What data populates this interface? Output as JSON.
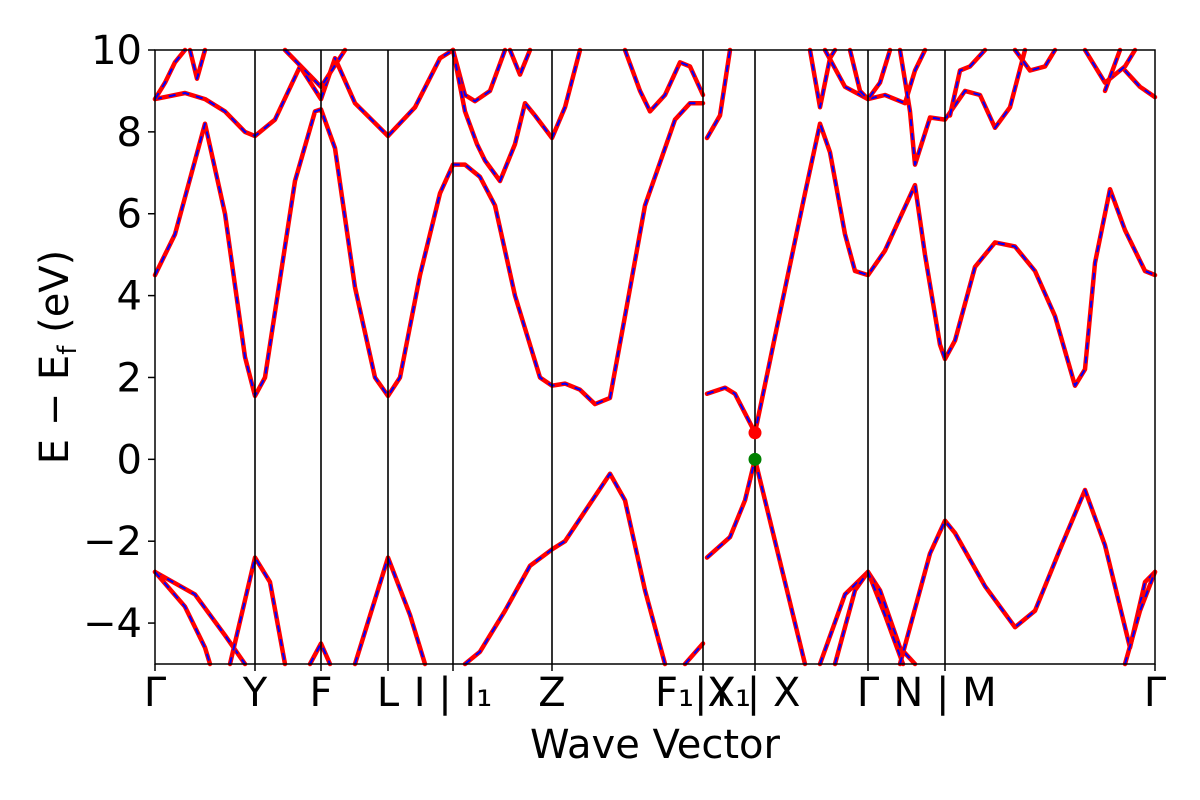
{
  "chart_data": {
    "type": "line",
    "xlabel": "Wave Vector",
    "ylabel_parts": {
      "main": "E − E",
      "sub": "f",
      "unit": " (eV)"
    },
    "ylim": [
      -5,
      10
    ],
    "yticks": [
      -4,
      -2,
      0,
      2,
      4,
      6,
      8,
      10
    ],
    "ytick_labels": [
      "−4",
      "−2",
      "0",
      "2",
      "4",
      "6",
      "8",
      "10"
    ],
    "xlim": [
      0,
      1
    ],
    "kpoints": [
      {
        "label": "Γ",
        "x": 0.0
      },
      {
        "label": "Y",
        "x": 0.1
      },
      {
        "label": "F",
        "x": 0.166
      },
      {
        "label": "L",
        "x": 0.233
      },
      {
        "label": "I | I₁",
        "x": 0.298
      },
      {
        "label": "Z",
        "x": 0.397
      },
      {
        "label": "F₁|X₁",
        "x": 0.548
      },
      {
        "label": "Y | X",
        "x": 0.6
      },
      {
        "label": "Γ",
        "x": 0.713
      },
      {
        "label": "N | M",
        "x": 0.79
      },
      {
        "label": "Γ",
        "x": 1.0
      }
    ],
    "series_colors": {
      "solid": "#ff0000",
      "dashed": "#0000ff"
    },
    "markers": [
      {
        "name": "cbm",
        "x": 0.6,
        "y": 0.65,
        "color": "#ff0000"
      },
      {
        "name": "vbm",
        "x": 0.6,
        "y": 0.0,
        "color": "#008000"
      }
    ],
    "bands": [
      {
        "name": "v1",
        "points": [
          [
            0,
            -2.75
          ],
          [
            0.04,
            -3.3
          ],
          [
            0.07,
            -4.3
          ],
          [
            0.09,
            -5.0
          ]
        ]
      },
      {
        "name": "v2",
        "points": [
          [
            0,
            -2.75
          ],
          [
            0.03,
            -3.6
          ],
          [
            0.05,
            -4.6
          ],
          [
            0.055,
            -5.0
          ]
        ]
      },
      {
        "name": "v3",
        "points": [
          [
            0.075,
            -5.0
          ],
          [
            0.1,
            -2.4
          ],
          [
            0.115,
            -3.0
          ],
          [
            0.13,
            -5.0
          ]
        ]
      },
      {
        "name": "v4",
        "points": [
          [
            0.155,
            -5.0
          ],
          [
            0.166,
            -4.5
          ],
          [
            0.175,
            -5.0
          ]
        ]
      },
      {
        "name": "v5",
        "points": [
          [
            0.2,
            -5.0
          ],
          [
            0.233,
            -2.4
          ],
          [
            0.255,
            -3.8
          ],
          [
            0.27,
            -5.0
          ]
        ]
      },
      {
        "name": "v6",
        "points": [
          [
            0.31,
            -5.0
          ],
          [
            0.325,
            -4.7
          ],
          [
            0.35,
            -3.7
          ],
          [
            0.375,
            -2.6
          ],
          [
            0.397,
            -2.2
          ],
          [
            0.41,
            -2.0
          ],
          [
            0.44,
            -0.9
          ],
          [
            0.455,
            -0.35
          ],
          [
            0.47,
            -1.0
          ],
          [
            0.49,
            -3.2
          ],
          [
            0.51,
            -5.0
          ]
        ]
      },
      {
        "name": "v7",
        "points": [
          [
            0.53,
            -5.0
          ],
          [
            0.548,
            -4.5
          ]
        ]
      },
      {
        "name": "v8",
        "points": [
          [
            0.552,
            -2.4
          ],
          [
            0.575,
            -1.9
          ],
          [
            0.59,
            -1.0
          ],
          [
            0.6,
            0.0
          ],
          [
            0.62,
            -2.0
          ],
          [
            0.65,
            -5.0
          ]
        ]
      },
      {
        "name": "v9",
        "points": [
          [
            0.665,
            -5.0
          ],
          [
            0.69,
            -3.3
          ],
          [
            0.713,
            -2.75
          ],
          [
            0.725,
            -3.2
          ],
          [
            0.745,
            -4.6
          ],
          [
            0.76,
            -5.0
          ]
        ]
      },
      {
        "name": "v10",
        "points": [
          [
            0.68,
            -5.0
          ],
          [
            0.7,
            -3.2
          ],
          [
            0.713,
            -2.75
          ],
          [
            0.73,
            -3.8
          ],
          [
            0.748,
            -5.0
          ]
        ]
      },
      {
        "name": "v11",
        "points": [
          [
            0.745,
            -5.0
          ],
          [
            0.775,
            -2.3
          ],
          [
            0.79,
            -1.5
          ],
          [
            0.8,
            -1.8
          ],
          [
            0.83,
            -3.1
          ],
          [
            0.86,
            -4.1
          ],
          [
            0.88,
            -3.7
          ],
          [
            0.905,
            -2.2
          ],
          [
            0.93,
            -0.75
          ],
          [
            0.95,
            -2.1
          ],
          [
            0.975,
            -4.6
          ],
          [
            0.99,
            -3.0
          ],
          [
            1.0,
            -2.75
          ]
        ]
      },
      {
        "name": "v12",
        "points": [
          [
            0.97,
            -5.0
          ],
          [
            0.985,
            -3.7
          ],
          [
            1.0,
            -2.75
          ]
        ]
      },
      {
        "name": "c1",
        "points": [
          [
            0,
            4.5
          ],
          [
            0.02,
            5.5
          ],
          [
            0.05,
            8.2
          ],
          [
            0.07,
            6.0
          ],
          [
            0.09,
            2.5
          ],
          [
            0.1,
            1.55
          ],
          [
            0.11,
            2.0
          ],
          [
            0.14,
            6.8
          ],
          [
            0.16,
            8.5
          ],
          [
            0.166,
            8.55
          ],
          [
            0.18,
            7.6
          ],
          [
            0.2,
            4.2
          ],
          [
            0.22,
            2.0
          ],
          [
            0.233,
            1.55
          ],
          [
            0.245,
            2.0
          ],
          [
            0.265,
            4.5
          ],
          [
            0.285,
            6.5
          ],
          [
            0.298,
            7.2
          ],
          [
            0.31,
            7.2
          ],
          [
            0.325,
            6.9
          ],
          [
            0.34,
            6.2
          ],
          [
            0.36,
            4.0
          ],
          [
            0.385,
            2.0
          ],
          [
            0.397,
            1.8
          ],
          [
            0.41,
            1.85
          ],
          [
            0.425,
            1.7
          ],
          [
            0.44,
            1.35
          ],
          [
            0.455,
            1.5
          ],
          [
            0.47,
            3.5
          ],
          [
            0.49,
            6.2
          ],
          [
            0.52,
            8.3
          ],
          [
            0.535,
            8.7
          ],
          [
            0.548,
            8.7
          ]
        ]
      },
      {
        "name": "c2",
        "points": [
          [
            0.552,
            1.6
          ],
          [
            0.57,
            1.75
          ],
          [
            0.58,
            1.6
          ],
          [
            0.6,
            0.65
          ],
          [
            0.62,
            3.0
          ],
          [
            0.65,
            6.5
          ],
          [
            0.665,
            8.2
          ],
          [
            0.675,
            7.5
          ],
          [
            0.69,
            5.5
          ],
          [
            0.7,
            4.6
          ],
          [
            0.713,
            4.5
          ],
          [
            0.73,
            5.1
          ],
          [
            0.76,
            6.7
          ],
          [
            0.77,
            5.0
          ],
          [
            0.785,
            2.8
          ],
          [
            0.79,
            2.45
          ],
          [
            0.8,
            2.9
          ],
          [
            0.82,
            4.7
          ],
          [
            0.84,
            5.3
          ],
          [
            0.86,
            5.2
          ],
          [
            0.88,
            4.6
          ],
          [
            0.9,
            3.5
          ],
          [
            0.92,
            1.8
          ],
          [
            0.93,
            2.2
          ],
          [
            0.94,
            4.8
          ],
          [
            0.955,
            6.6
          ],
          [
            0.97,
            5.6
          ],
          [
            0.99,
            4.6
          ],
          [
            1.0,
            4.5
          ]
        ]
      },
      {
        "name": "c3",
        "points": [
          [
            0,
            8.8
          ],
          [
            0.03,
            8.95
          ],
          [
            0.05,
            8.8
          ],
          [
            0.07,
            8.5
          ],
          [
            0.09,
            8.0
          ],
          [
            0.1,
            7.9
          ],
          [
            0.12,
            8.3
          ],
          [
            0.145,
            9.6
          ],
          [
            0.166,
            8.8
          ],
          [
            0.18,
            9.8
          ],
          [
            0.2,
            8.7
          ],
          [
            0.233,
            7.9
          ],
          [
            0.26,
            8.6
          ],
          [
            0.285,
            9.8
          ],
          [
            0.298,
            10.0
          ]
        ]
      },
      {
        "name": "c4",
        "points": [
          [
            0,
            8.8
          ],
          [
            0.01,
            9.2
          ],
          [
            0.02,
            9.7
          ],
          [
            0.03,
            10.0
          ]
        ]
      },
      {
        "name": "c5",
        "points": [
          [
            0.035,
            10.0
          ],
          [
            0.042,
            9.3
          ],
          [
            0.05,
            10.0
          ]
        ]
      },
      {
        "name": "c6",
        "points": [
          [
            0.13,
            10.0
          ],
          [
            0.166,
            9.1
          ],
          [
            0.19,
            10.0
          ]
        ]
      },
      {
        "name": "c7",
        "points": [
          [
            0.298,
            10.0
          ],
          [
            0.31,
            8.9
          ],
          [
            0.32,
            8.75
          ],
          [
            0.335,
            9.0
          ],
          [
            0.35,
            10.0
          ]
        ]
      },
      {
        "name": "c8",
        "points": [
          [
            0.298,
            10.0
          ],
          [
            0.31,
            8.5
          ],
          [
            0.322,
            7.7
          ],
          [
            0.33,
            7.3
          ],
          [
            0.345,
            6.8
          ],
          [
            0.36,
            7.7
          ],
          [
            0.37,
            8.7
          ],
          [
            0.38,
            8.4
          ],
          [
            0.397,
            7.85
          ],
          [
            0.41,
            8.6
          ],
          [
            0.425,
            10.0
          ]
        ]
      },
      {
        "name": "c9",
        "points": [
          [
            0.355,
            10.0
          ],
          [
            0.365,
            9.4
          ],
          [
            0.375,
            10.0
          ]
        ]
      },
      {
        "name": "c10",
        "points": [
          [
            0.47,
            10.0
          ],
          [
            0.485,
            9.0
          ],
          [
            0.495,
            8.5
          ],
          [
            0.51,
            8.9
          ],
          [
            0.525,
            9.7
          ],
          [
            0.535,
            9.6
          ],
          [
            0.548,
            8.9
          ]
        ]
      },
      {
        "name": "c11",
        "points": [
          [
            0.552,
            7.85
          ],
          [
            0.565,
            8.4
          ],
          [
            0.575,
            10.0
          ]
        ]
      },
      {
        "name": "c12",
        "points": [
          [
            0.655,
            10.0
          ],
          [
            0.665,
            8.6
          ],
          [
            0.675,
            9.8
          ],
          [
            0.68,
            10.0
          ]
        ]
      },
      {
        "name": "c13",
        "points": [
          [
            0.67,
            10.0
          ],
          [
            0.69,
            9.1
          ],
          [
            0.713,
            8.8
          ],
          [
            0.73,
            8.9
          ],
          [
            0.75,
            8.7
          ],
          [
            0.76,
            9.5
          ],
          [
            0.77,
            10.0
          ]
        ]
      },
      {
        "name": "c14",
        "points": [
          [
            0.695,
            10.0
          ],
          [
            0.705,
            9.0
          ],
          [
            0.713,
            8.8
          ],
          [
            0.725,
            9.2
          ],
          [
            0.735,
            10.0
          ]
        ]
      },
      {
        "name": "c15",
        "points": [
          [
            0.745,
            10.0
          ],
          [
            0.755,
            8.5
          ],
          [
            0.76,
            7.2
          ],
          [
            0.775,
            8.35
          ],
          [
            0.79,
            8.3
          ],
          [
            0.81,
            9.0
          ],
          [
            0.825,
            8.9
          ],
          [
            0.84,
            8.1
          ],
          [
            0.855,
            8.6
          ],
          [
            0.87,
            10.0
          ]
        ]
      },
      {
        "name": "c16",
        "points": [
          [
            0.795,
            8.4
          ],
          [
            0.805,
            9.5
          ],
          [
            0.815,
            9.6
          ],
          [
            0.83,
            10.0
          ]
        ]
      },
      {
        "name": "c17",
        "points": [
          [
            0.86,
            10.0
          ],
          [
            0.875,
            9.5
          ],
          [
            0.89,
            9.6
          ],
          [
            0.9,
            10.0
          ]
        ]
      },
      {
        "name": "c18",
        "points": [
          [
            0.93,
            10.0
          ],
          [
            0.95,
            9.2
          ],
          [
            0.97,
            9.6
          ],
          [
            0.98,
            10.0
          ]
        ]
      },
      {
        "name": "c19",
        "points": [
          [
            0.95,
            9.0
          ],
          [
            0.965,
            10.0
          ]
        ]
      },
      {
        "name": "c20",
        "points": [
          [
            0.97,
            9.5
          ],
          [
            0.985,
            9.1
          ],
          [
            1.0,
            8.85
          ]
        ]
      }
    ]
  }
}
